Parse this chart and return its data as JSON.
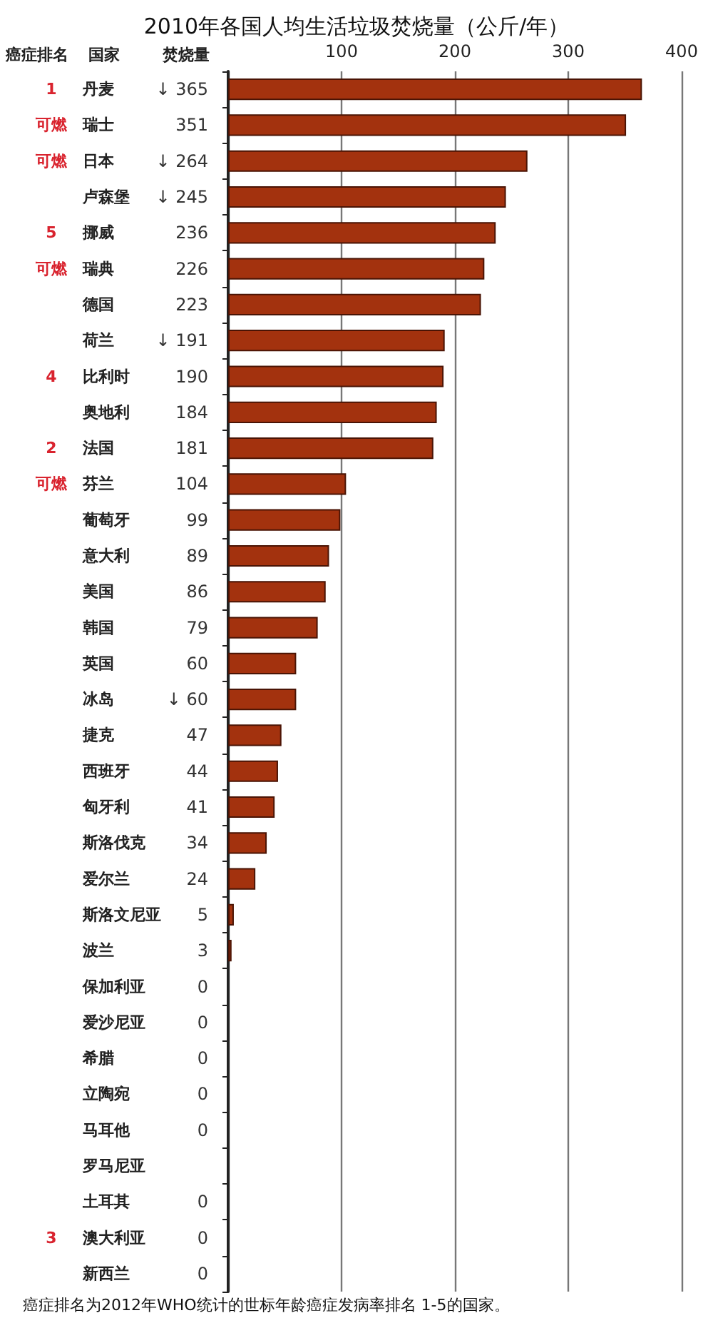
{
  "chart_data": {
    "type": "bar",
    "orientation": "horizontal",
    "title": "2010年各国人均生活垃圾焚烧量（公斤/年）",
    "ylabel": "国家",
    "xlabel": "焚烧量",
    "categories": [
      "丹麦",
      "瑞士",
      "日本",
      "卢森堡",
      "挪威",
      "瑞典",
      "德国",
      "荷兰",
      "比利时",
      "奥地利",
      "法国",
      "芬兰",
      "葡萄牙",
      "意大利",
      "美国",
      "韩国",
      "英国",
      "冰岛",
      "捷克",
      "西班牙",
      "匈牙利",
      "斯洛伐克",
      "爱尔兰",
      "斯洛文尼亚",
      "波兰",
      "保加利亚",
      "爱沙尼亚",
      "希腊",
      "立陶宛",
      "马耳他",
      "罗马尼亚",
      "土耳其",
      "澳大利亚",
      "新西兰"
    ],
    "values": [
      365,
      351,
      264,
      245,
      236,
      226,
      223,
      191,
      190,
      184,
      181,
      104,
      99,
      89,
      86,
      79,
      60,
      60,
      47,
      44,
      41,
      34,
      24,
      5,
      3,
      0,
      0,
      0,
      0,
      0,
      null,
      0,
      0,
      0
    ],
    "value_labels": [
      "↓ 365",
      "351",
      "↓ 264",
      "↓ 245",
      "236",
      "226",
      "223",
      "↓ 191",
      "190",
      "184",
      "181",
      "104",
      "99",
      "89",
      "86",
      "79",
      "60",
      "↓ 60",
      "47",
      "44",
      "41",
      "34",
      "24",
      "5",
      "3",
      "0",
      "0",
      "0",
      "0",
      "0",
      null,
      "0",
      "0",
      "0"
    ],
    "color": "#a3320e",
    "xlim": [
      0,
      400
    ],
    "xticks": [
      {
        "value": 0,
        "label": null
      },
      100,
      200,
      300,
      400
    ],
    "grid": "x",
    "y2_categories": [
      "1",
      "可燃",
      "可燃",
      null,
      "5",
      "可燃",
      null,
      null,
      "4",
      null,
      "2",
      "可燃",
      null,
      null,
      null,
      null,
      null,
      null,
      null,
      null,
      null,
      null,
      null,
      null,
      null,
      null,
      null,
      null,
      null,
      null,
      null,
      null,
      "3",
      null
    ],
    "annotations": [
      "癌症排名",
      "癌症排名为2012年WHO统计的世标年龄癌症发病率排名 1-5的国家。"
    ]
  }
}
